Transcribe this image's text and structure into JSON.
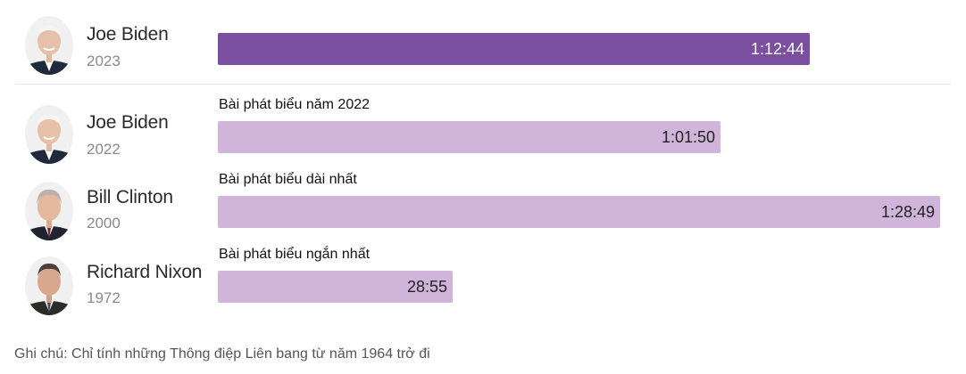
{
  "chart_data": {
    "type": "bar",
    "unit": "h:mm:ss",
    "xlim_seconds": [
      0,
      5400
    ],
    "rows": [
      {
        "name": "Joe Biden",
        "year": "2023",
        "caption": "",
        "duration_label": "1:12:44",
        "duration_seconds": 4364,
        "highlight": true
      },
      {
        "name": "Joe Biden",
        "year": "2022",
        "caption": "Bài phát biểu năm 2022",
        "duration_label": "1:01:50",
        "duration_seconds": 3710,
        "highlight": false
      },
      {
        "name": "Bill Clinton",
        "year": "2000",
        "caption": "Bài phát biểu dài nhất",
        "duration_label": "1:28:49",
        "duration_seconds": 5329,
        "highlight": false
      },
      {
        "name": "Richard Nixon",
        "year": "1972",
        "caption": "Bài phát biểu ngắn nhất",
        "duration_label": "28:55",
        "duration_seconds": 1735,
        "highlight": false
      }
    ],
    "colors": {
      "highlight_bar": "#7b4fa0",
      "highlight_text": "#ffffff",
      "bar": "#d0b4d9",
      "bar_text": "#222222"
    }
  },
  "note": "Ghi chú: Chỉ tính những Thông điệp Liên bang từ năm 1964 trở đi"
}
